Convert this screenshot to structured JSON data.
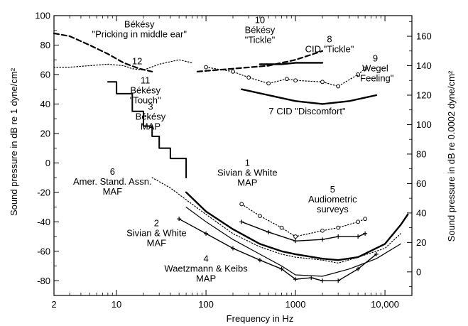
{
  "chart_data": {
    "type": "line",
    "title": "",
    "xlabel": "Frequency in Hz",
    "ylabel": "Sound pressure in dB re 1 dyne/cm²",
    "ylabel_right": "Sound pressure in dB re 0.0002 dyne/cm²",
    "xscale": "log",
    "xlim": [
      2,
      20000
    ],
    "ylim": [
      -90,
      100
    ],
    "ylim_right": [
      -16,
      174
    ],
    "grid": false,
    "x_ticks": [
      {
        "value": 2,
        "label": "2"
      },
      {
        "value": 10,
        "label": "10"
      },
      {
        "value": 100,
        "label": "100"
      },
      {
        "value": 1000,
        "label": "1000"
      },
      {
        "value": 10000,
        "label": "10,000"
      }
    ],
    "y_ticks": [
      {
        "value": -80,
        "label": "-80"
      },
      {
        "value": -60,
        "label": "-60"
      },
      {
        "value": -40,
        "label": "-40"
      },
      {
        "value": -20,
        "label": "-20"
      },
      {
        "value": 0,
        "label": "0"
      },
      {
        "value": 20,
        "label": "20"
      },
      {
        "value": 40,
        "label": "40"
      },
      {
        "value": 60,
        "label": "60"
      },
      {
        "value": 80,
        "label": "80"
      },
      {
        "value": 100,
        "label": "100"
      }
    ],
    "y_ticks_right": [
      {
        "value": 0,
        "label": "0"
      },
      {
        "value": 20,
        "label": "20"
      },
      {
        "value": 40,
        "label": "40"
      },
      {
        "value": 60,
        "label": "60"
      },
      {
        "value": 80,
        "label": "80"
      },
      {
        "value": 100,
        "label": "100"
      },
      {
        "value": 120,
        "label": "120"
      },
      {
        "value": 140,
        "label": "140"
      },
      {
        "value": 160,
        "label": "160"
      }
    ],
    "series": [
      {
        "name": "Békésy \"Pricking in middle ear\"",
        "style": "dashed-bold",
        "points": [
          [
            2,
            88
          ],
          [
            3,
            86
          ],
          [
            5,
            80
          ],
          [
            8,
            74
          ],
          [
            12,
            68
          ],
          [
            18,
            64
          ],
          [
            25,
            62
          ]
        ]
      },
      {
        "name": "Békésy \"Touch\"",
        "style": "dotted",
        "points": [
          [
            2,
            65
          ],
          [
            3,
            65
          ],
          [
            5,
            66
          ],
          [
            8,
            67
          ],
          [
            12,
            66
          ],
          [
            15,
            64
          ],
          [
            20,
            63
          ],
          [
            30,
            67
          ],
          [
            50,
            70
          ],
          [
            70,
            68
          ]
        ]
      },
      {
        "name": "Békésy \"Tickle\"",
        "style": "solid-bold",
        "points": [
          [
            400,
            67
          ],
          [
            700,
            67
          ],
          [
            1000,
            68
          ],
          [
            2000,
            68
          ]
        ]
      },
      {
        "name": "CID \"Tickle\"",
        "style": "dashed-bold",
        "points": [
          [
            80,
            62
          ],
          [
            200,
            64
          ],
          [
            500,
            66
          ],
          [
            1000,
            70
          ],
          [
            2000,
            76
          ]
        ]
      },
      {
        "name": "Wegel \"Feeling\"",
        "style": "dotted-marker",
        "points": [
          [
            100,
            65
          ],
          [
            200,
            62
          ],
          [
            300,
            58
          ],
          [
            500,
            54
          ],
          [
            800,
            57
          ],
          [
            1000,
            56
          ],
          [
            2000,
            55
          ],
          [
            3000,
            52
          ],
          [
            5000,
            60
          ],
          [
            6000,
            64
          ]
        ]
      },
      {
        "name": "CID \"Discomfort\"",
        "style": "solid-bold",
        "points": [
          [
            250,
            50
          ],
          [
            500,
            46
          ],
          [
            1000,
            42
          ],
          [
            2000,
            40
          ],
          [
            4000,
            42
          ],
          [
            8000,
            46
          ]
        ]
      },
      {
        "name": "Békésy MAP",
        "style": "stair",
        "points": [
          [
            8,
            55
          ],
          [
            10,
            47
          ],
          [
            15,
            35
          ],
          [
            20,
            25
          ],
          [
            25,
            18
          ],
          [
            30,
            10
          ],
          [
            40,
            3
          ],
          [
            60,
            -10
          ]
        ]
      },
      {
        "name": "Amer. Stand. Assn. MAF",
        "style": "dotted",
        "points": [
          [
            25,
            -10
          ],
          [
            40,
            -17
          ],
          [
            60,
            -25
          ],
          [
            100,
            -35
          ],
          [
            200,
            -48
          ],
          [
            400,
            -57
          ],
          [
            700,
            -62
          ],
          [
            1000,
            -64
          ],
          [
            2000,
            -66
          ],
          [
            3000,
            -68
          ],
          [
            5000,
            -64
          ],
          [
            10000,
            -58
          ],
          [
            15000,
            -48
          ]
        ]
      },
      {
        "name": "Sivian & White MAP",
        "style": "solid-bold",
        "points": [
          [
            60,
            -20
          ],
          [
            100,
            -33
          ],
          [
            200,
            -45
          ],
          [
            400,
            -55
          ],
          [
            700,
            -60
          ],
          [
            1000,
            -62
          ],
          [
            2000,
            -65
          ],
          [
            3000,
            -66
          ],
          [
            5000,
            -64
          ],
          [
            10000,
            -55
          ],
          [
            15000,
            -42
          ],
          [
            18000,
            -35
          ]
        ]
      },
      {
        "name": "Sivian & White MAF",
        "style": "solid-thin",
        "points": [
          [
            60,
            -30
          ],
          [
            100,
            -40
          ],
          [
            200,
            -52
          ],
          [
            400,
            -62
          ],
          [
            700,
            -70
          ],
          [
            1000,
            -76
          ],
          [
            2000,
            -77
          ],
          [
            4000,
            -72
          ],
          [
            8000,
            -65
          ],
          [
            15000,
            -55
          ]
        ]
      },
      {
        "name": "Waetzmann & Keibs MAP",
        "style": "solid-marker",
        "points": [
          [
            50,
            -38
          ],
          [
            100,
            -48
          ],
          [
            200,
            -58
          ],
          [
            400,
            -66
          ],
          [
            700,
            -72
          ],
          [
            1000,
            -79
          ],
          [
            1500,
            -78
          ],
          [
            2000,
            -80
          ],
          [
            3000,
            -80
          ],
          [
            5000,
            -72
          ],
          [
            8000,
            -62
          ]
        ]
      },
      {
        "name": "Audiometric surveys",
        "style": "dotted-marker",
        "points": [
          [
            250,
            -28
          ],
          [
            400,
            -36
          ],
          [
            700,
            -44
          ],
          [
            1000,
            -50
          ],
          [
            2000,
            -46
          ],
          [
            3000,
            -44
          ],
          [
            5000,
            -40
          ],
          [
            6000,
            -38
          ]
        ]
      },
      {
        "name": "Audiometric surveys (lower)",
        "style": "solid-marker",
        "points": [
          [
            250,
            -40
          ],
          [
            500,
            -47
          ],
          [
            1000,
            -53
          ],
          [
            2000,
            -52
          ],
          [
            3000,
            -50
          ],
          [
            5000,
            -50
          ],
          [
            6000,
            -48
          ]
        ]
      }
    ],
    "annotations": [
      {
        "lines": [
          "Békésy",
          "\"Pricking in middle ear\""
        ],
        "at": [
          18,
          92
        ]
      },
      {
        "lines": [
          "12"
        ],
        "at": [
          17,
          67
        ]
      },
      {
        "lines": [
          "11",
          "Békésy",
          "\"Touch\""
        ],
        "at": [
          21,
          54
        ]
      },
      {
        "lines": [
          "10",
          "Békésy",
          "\"Tickle\""
        ],
        "at": [
          400,
          95
        ]
      },
      {
        "lines": [
          "8",
          "CID \"Tickle\""
        ],
        "at": [
          2400,
          82
        ]
      },
      {
        "lines": [
          "9",
          "Wegel",
          "\"Feeling\""
        ],
        "at": [
          7800,
          69
        ]
      },
      {
        "lines": [
          "7 CID \"Discomfort\""
        ],
        "at": [
          1350,
          33
        ]
      },
      {
        "lines": [
          "3",
          "Békésy",
          "MAP"
        ],
        "at": [
          24,
          36
        ]
      },
      {
        "lines": [
          "6",
          "Amer. Stand. Assn.",
          "MAF"
        ],
        "at": [
          9,
          -8
        ]
      },
      {
        "lines": [
          "1",
          "Sivian & White",
          "MAP"
        ],
        "at": [
          290,
          -2
        ]
      },
      {
        "lines": [
          "5",
          "Audiometric",
          "surveys"
        ],
        "at": [
          2600,
          -20
        ]
      },
      {
        "lines": [
          "2",
          "Sivian & White",
          "MAF"
        ],
        "at": [
          28,
          -43
        ]
      },
      {
        "lines": [
          "4",
          "Waetzmann & Keibs",
          "MAP"
        ],
        "at": [
          100,
          -67
        ]
      }
    ]
  }
}
